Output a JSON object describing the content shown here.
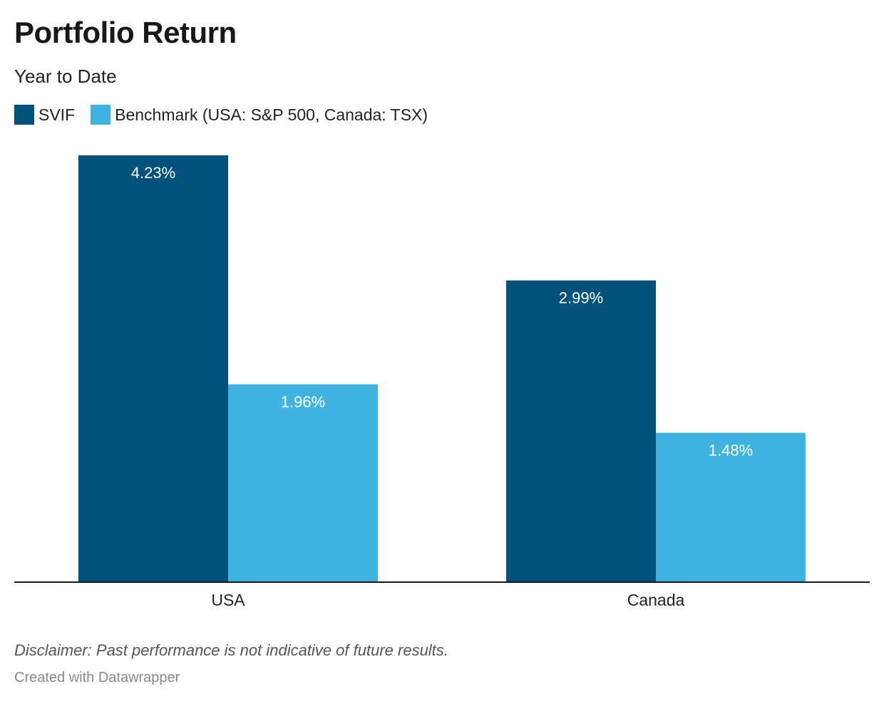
{
  "colors": {
    "svif": "#00527a",
    "benchmark": "#40b4e0",
    "axis": "#181818",
    "label_on_bar": "#ffffff"
  },
  "chart_data": {
    "type": "bar",
    "title": "Portfolio Return",
    "subtitle": "Year to Date",
    "categories": [
      "USA",
      "Canada"
    ],
    "series": [
      {
        "name": "SVIF",
        "values": [
          4.23,
          2.99
        ],
        "labels": [
          "4.23%",
          "2.99%"
        ]
      },
      {
        "name": "Benchmark (USA: S&P 500, Canada: TSX)",
        "values": [
          1.96,
          1.48
        ],
        "labels": [
          "1.96%",
          "1.48%"
        ]
      }
    ],
    "xlabel": "",
    "ylabel": "",
    "ylim": [
      0,
      4.23
    ],
    "grid": false,
    "legend_position": "top-left",
    "value_unit": "%"
  },
  "footer": {
    "disclaimer": "Disclaimer: Past performance is not indicative of future results.",
    "credit": "Created with Datawrapper"
  }
}
